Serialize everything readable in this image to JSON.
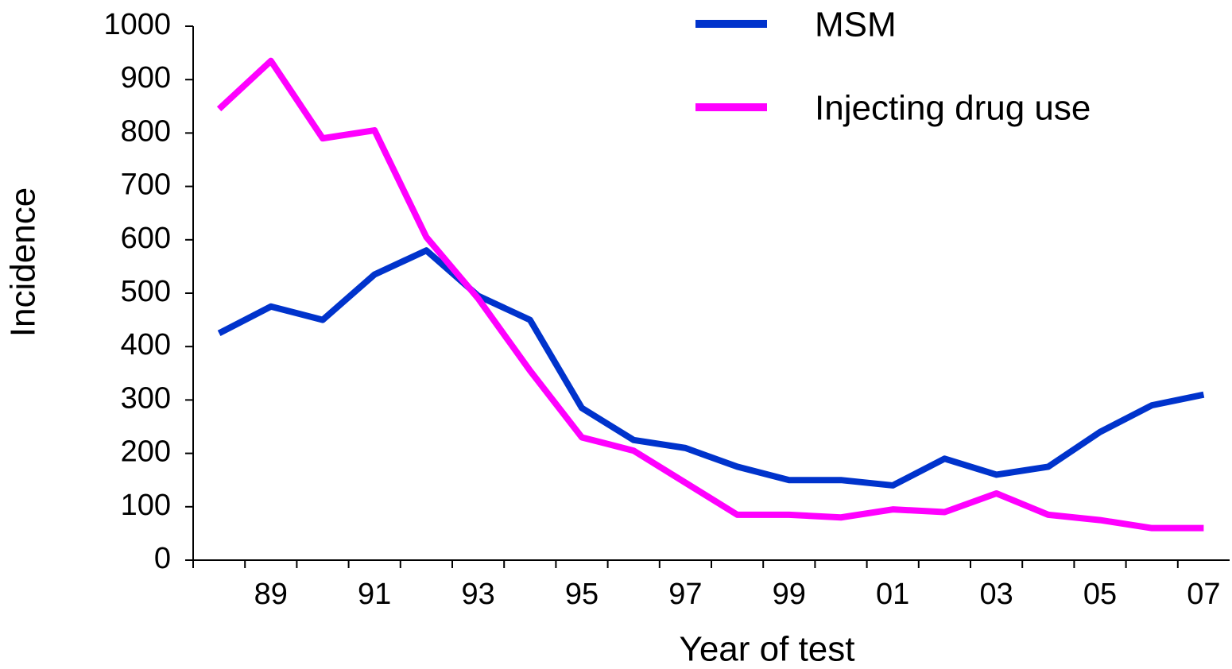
{
  "chart_data": {
    "type": "line",
    "xlabel": "Year of test",
    "ylabel": "Incidence",
    "categories": [
      null,
      "89",
      null,
      "91",
      null,
      "93",
      null,
      "95",
      null,
      "97",
      null,
      "99",
      null,
      "01",
      null,
      "03",
      null,
      "05",
      null,
      "07"
    ],
    "series": [
      {
        "name": "MSM",
        "color": "#0033cc",
        "values": [
          425,
          475,
          450,
          535,
          580,
          495,
          450,
          285,
          225,
          210,
          175,
          150,
          150,
          140,
          190,
          160,
          175,
          240,
          290,
          310
        ]
      },
      {
        "name": "Injecting drug use",
        "color": "#ff00ff",
        "values": [
          845,
          935,
          790,
          805,
          605,
          490,
          355,
          230,
          205,
          145,
          85,
          85,
          80,
          95,
          90,
          125,
          85,
          75,
          60,
          60
        ]
      }
    ],
    "ylim": [
      0,
      1000
    ],
    "yticks": [
      0,
      100,
      200,
      300,
      400,
      500,
      600,
      700,
      800,
      900,
      1000
    ],
    "grid": false,
    "legend": "top-right"
  }
}
